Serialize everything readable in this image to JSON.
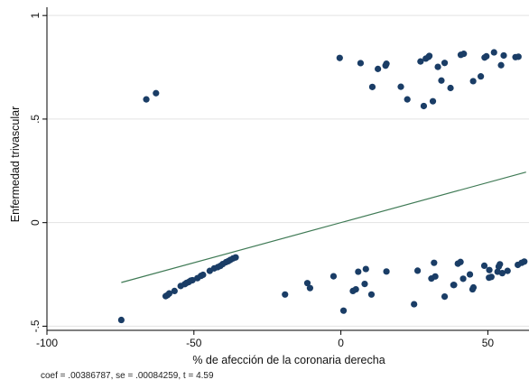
{
  "chart_data": {
    "type": "scatter",
    "xlabel": "% de afección de la coronaria derecha",
    "ylabel": "Enfermedad trivascular",
    "xlim": [
      -100,
      64
    ],
    "ylim": [
      -0.52,
      1.04
    ],
    "xticks": [
      -100,
      -50,
      0,
      50
    ],
    "yticks": [
      -0.5,
      0,
      0.5,
      1
    ],
    "ytick_labels": [
      "-.5",
      "0",
      ".5",
      "1"
    ],
    "grid": true,
    "legend": "none",
    "marker_color": "#1a3d66",
    "line_color": "#3f7a55",
    "fit_line": {
      "x": [
        -74.7,
        63
      ],
      "y": [
        -0.289,
        0.244
      ]
    },
    "points": [
      [
        -74.7,
        -0.47
      ],
      [
        -66.2,
        0.595
      ],
      [
        -62.9,
        0.625
      ],
      [
        -59.6,
        -0.355
      ],
      [
        -59.0,
        -0.35
      ],
      [
        -58.4,
        -0.342
      ],
      [
        -56.6,
        -0.33
      ],
      [
        -54.5,
        -0.306
      ],
      [
        -53.1,
        -0.297
      ],
      [
        -52.5,
        -0.291
      ],
      [
        -51.8,
        -0.287
      ],
      [
        -51.1,
        -0.28
      ],
      [
        -50.5,
        -0.278
      ],
      [
        -48.8,
        -0.268
      ],
      [
        -47.6,
        -0.257
      ],
      [
        -46.9,
        -0.252
      ],
      [
        -44.6,
        -0.233
      ],
      [
        -43.1,
        -0.221
      ],
      [
        -41.9,
        -0.215
      ],
      [
        -41.0,
        -0.209
      ],
      [
        -40.2,
        -0.2
      ],
      [
        -39.1,
        -0.191
      ],
      [
        -38.3,
        -0.186
      ],
      [
        -37.6,
        -0.18
      ],
      [
        -36.7,
        -0.173
      ],
      [
        -35.8,
        -0.168
      ],
      [
        -19.0,
        -0.347
      ],
      [
        -11.4,
        -0.292
      ],
      [
        -10.5,
        -0.316
      ],
      [
        -2.5,
        -0.259
      ],
      [
        0.9,
        -0.425
      ],
      [
        4.1,
        -0.33
      ],
      [
        5.1,
        -0.322
      ],
      [
        5.9,
        -0.237
      ],
      [
        8.1,
        -0.296
      ],
      [
        8.5,
        -0.224
      ],
      [
        10.4,
        -0.347
      ],
      [
        15.5,
        -0.236
      ],
      [
        24.9,
        -0.394
      ],
      [
        26.1,
        -0.232
      ],
      [
        30.8,
        -0.27
      ],
      [
        31.7,
        -0.194
      ],
      [
        32.1,
        -0.26
      ],
      [
        35.3,
        -0.357
      ],
      [
        38.3,
        -0.301
      ],
      [
        38.5,
        -0.301
      ],
      [
        39.8,
        -0.198
      ],
      [
        40.7,
        -0.19
      ],
      [
        41.6,
        -0.271
      ],
      [
        43.9,
        -0.25
      ],
      [
        44.8,
        -0.322
      ],
      [
        45.1,
        -0.313
      ],
      [
        48.8,
        -0.208
      ],
      [
        50.4,
        -0.266
      ],
      [
        50.5,
        -0.229
      ],
      [
        51.2,
        -0.262
      ],
      [
        53.3,
        -0.237
      ],
      [
        53.7,
        -0.212
      ],
      [
        54.1,
        -0.201
      ],
      [
        54.9,
        -0.244
      ],
      [
        56.7,
        -0.233
      ],
      [
        60.2,
        -0.204
      ],
      [
        61.5,
        -0.194
      ],
      [
        62.4,
        -0.188
      ],
      [
        -0.4,
        0.795
      ],
      [
        6.7,
        0.77
      ],
      [
        10.7,
        0.655
      ],
      [
        12.6,
        0.742
      ],
      [
        15.2,
        0.758
      ],
      [
        15.5,
        0.767
      ],
      [
        20.4,
        0.656
      ],
      [
        22.6,
        0.595
      ],
      [
        27.1,
        0.778
      ],
      [
        28.2,
        0.563
      ],
      [
        28.9,
        0.792
      ],
      [
        29.8,
        0.8
      ],
      [
        30.1,
        0.805
      ],
      [
        31.3,
        0.586
      ],
      [
        33.0,
        0.752
      ],
      [
        34.2,
        0.686
      ],
      [
        35.3,
        0.771
      ],
      [
        37.3,
        0.65
      ],
      [
        40.8,
        0.81
      ],
      [
        41.8,
        0.815
      ],
      [
        45.0,
        0.683
      ],
      [
        47.6,
        0.706
      ],
      [
        48.9,
        0.797
      ],
      [
        49.5,
        0.803
      ],
      [
        52.1,
        0.822
      ],
      [
        54.5,
        0.76
      ],
      [
        55.4,
        0.807
      ],
      [
        59.4,
        0.799
      ],
      [
        60.4,
        0.801
      ]
    ]
  },
  "footnote": "coef = .00386787, se = .00084259, t = 4.59"
}
